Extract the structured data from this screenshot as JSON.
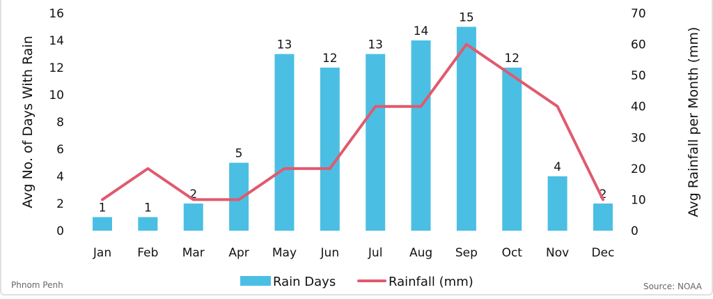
{
  "chart_data": {
    "type": "bar+line",
    "categories": [
      "Jan",
      "Feb",
      "Mar",
      "Apr",
      "May",
      "Jun",
      "Jul",
      "Aug",
      "Sep",
      "Oct",
      "Nov",
      "Dec"
    ],
    "series": [
      {
        "name": "Rain Days",
        "type": "bar",
        "axis": "left",
        "color": "#4bbfe3",
        "values": [
          1,
          1,
          2,
          5,
          13,
          12,
          13,
          14,
          15,
          12,
          4,
          2
        ],
        "data_labels": true
      },
      {
        "name": "Rainfall (mm)",
        "type": "line",
        "axis": "right",
        "color": "#e05a6e",
        "values": [
          10,
          20,
          10,
          10,
          20,
          20,
          40,
          40,
          60,
          50,
          40,
          10
        ]
      }
    ],
    "ylabel": "Avg No. of Days With Rain",
    "y2label": "Avg Rainfall per Month (mm)",
    "ylim": [
      0,
      16
    ],
    "y_ticks": [
      0,
      2,
      4,
      6,
      8,
      10,
      12,
      14,
      16
    ],
    "y2lim": [
      0,
      70
    ],
    "y2_ticks": [
      0,
      10,
      20,
      30,
      40,
      50,
      60,
      70
    ],
    "grid": false,
    "legend": "bottom"
  },
  "footer": {
    "location": "Phnom Penh",
    "source": "Source: NOAA"
  }
}
